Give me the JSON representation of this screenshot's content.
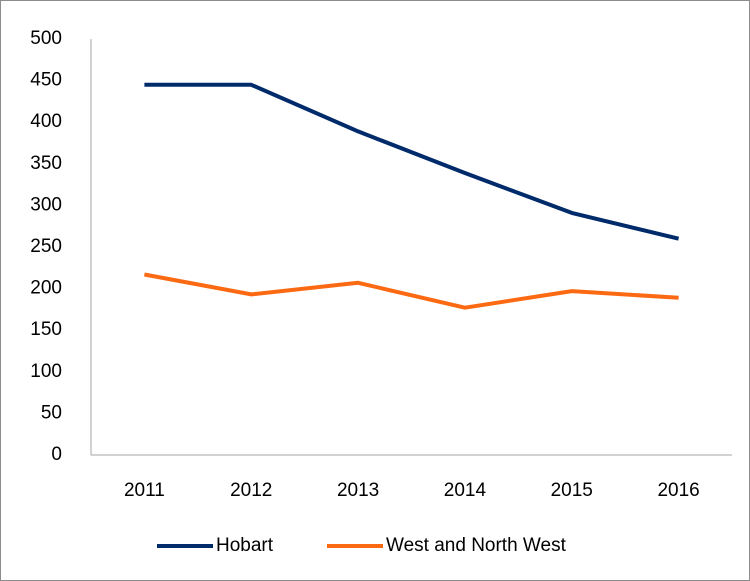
{
  "chart_data": {
    "type": "line",
    "categories": [
      "2011",
      "2012",
      "2013",
      "2014",
      "2015",
      "2016"
    ],
    "series": [
      {
        "name": "Hobart",
        "color": "#002b6b",
        "values": [
          445,
          445,
          389,
          339,
          291,
          260
        ]
      },
      {
        "name": "West and North West",
        "color": "#fb6a12",
        "values": [
          217,
          193,
          207,
          177,
          197,
          189
        ]
      }
    ],
    "ylim": [
      0,
      500
    ],
    "yticks": [
      0,
      50,
      100,
      150,
      200,
      250,
      300,
      350,
      400,
      450,
      500
    ],
    "grid": false,
    "legend": "bottom"
  }
}
